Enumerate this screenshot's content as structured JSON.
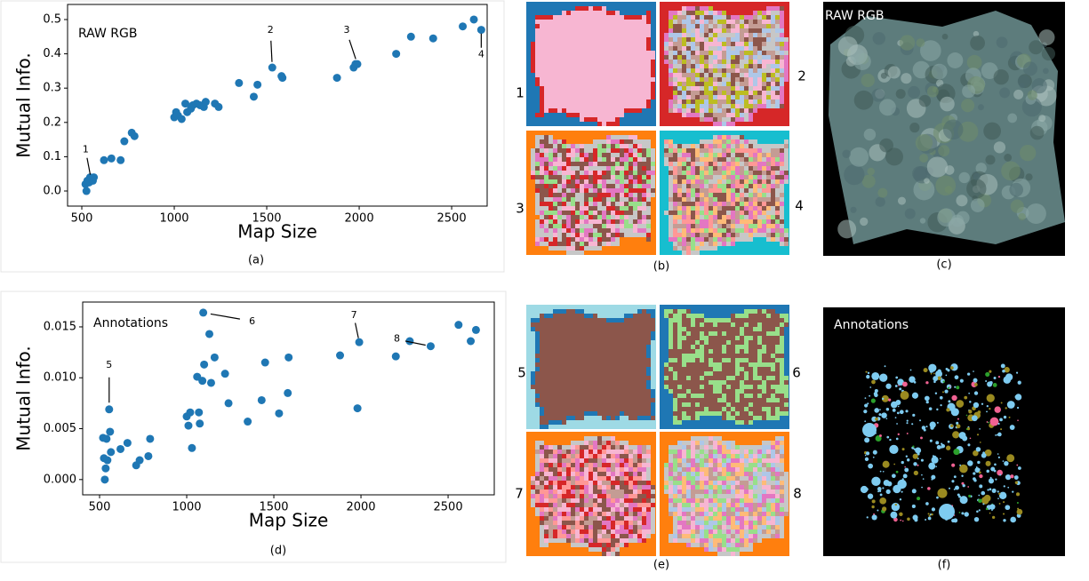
{
  "chart_data": [
    {
      "type": "scatter",
      "label": "RAW RGB",
      "xlabel": "Map Size",
      "ylabel": "Mutual Info.",
      "color": "#1f77b4",
      "x": [
        520,
        525,
        530,
        540,
        545,
        550,
        560,
        565,
        620,
        660,
        710,
        730,
        770,
        785,
        1000,
        1010,
        1020,
        1040,
        1060,
        1070,
        1090,
        1100,
        1120,
        1140,
        1160,
        1170,
        1220,
        1240,
        1350,
        1430,
        1450,
        1530,
        1580,
        1585,
        1880,
        1970,
        1980,
        1990,
        2200,
        2280,
        2400,
        2560,
        2620,
        2660
      ],
      "values": [
        0.02,
        0.0,
        0.03,
        0.025,
        0.04,
        0.035,
        0.03,
        0.04,
        0.09,
        0.095,
        0.09,
        0.145,
        0.17,
        0.16,
        0.215,
        0.23,
        0.22,
        0.21,
        0.255,
        0.23,
        0.24,
        0.25,
        0.255,
        0.25,
        0.245,
        0.26,
        0.255,
        0.245,
        0.315,
        0.275,
        0.31,
        0.36,
        0.335,
        0.33,
        0.33,
        0.36,
        0.37,
        0.37,
        0.4,
        0.45,
        0.445,
        0.48,
        0.5,
        0.47
      ],
      "xlim": [
        423,
        2692
      ],
      "ylim": [
        -0.044,
        0.544
      ],
      "xticks": [
        500,
        1000,
        1500,
        2000,
        2500
      ],
      "yticks": [
        {
          "value": 0,
          "label": "0.0"
        },
        0.1,
        0.2,
        0.3,
        0.4,
        0.5
      ],
      "annotations": [
        "1",
        "2",
        "3",
        "4"
      ],
      "caption": "(a)"
    },
    {
      "type": "scatter",
      "label": "Annotations",
      "xlabel": "Map Size",
      "ylabel": "Mutual Info.",
      "color": "#1f77b4",
      "x": [
        520,
        525,
        530,
        535,
        540,
        545,
        555,
        560,
        565,
        620,
        660,
        710,
        730,
        780,
        790,
        1000,
        1010,
        1020,
        1030,
        1060,
        1070,
        1075,
        1090,
        1100,
        1095,
        1130,
        1140,
        1160,
        1220,
        1240,
        1350,
        1430,
        1450,
        1530,
        1580,
        1585,
        1880,
        1980,
        1990,
        2200,
        2280,
        2400,
        2560,
        2630,
        2660
      ],
      "values": [
        0.0041,
        0.0021,
        0.0,
        0.0011,
        0.004,
        0.0019,
        0.0069,
        0.0047,
        0.0027,
        0.003,
        0.0036,
        0.0014,
        0.0019,
        0.0023,
        0.004,
        0.0062,
        0.0053,
        0.0066,
        0.0031,
        0.0101,
        0.0066,
        0.0055,
        0.0097,
        0.0113,
        0.0164,
        0.0143,
        0.0095,
        0.012,
        0.0104,
        0.0075,
        0.0057,
        0.0078,
        0.0115,
        0.0065,
        0.0085,
        0.012,
        0.0122,
        0.007,
        0.0135,
        0.0121,
        0.0136,
        0.0131,
        0.0152,
        0.0136,
        0.0147
      ],
      "xlim": [
        403,
        2765
      ],
      "ylim": [
        -0.0015,
        0.01744
      ],
      "xticks": [
        500,
        1000,
        1500,
        2000,
        2500
      ],
      "yticks": [
        {
          "value": 0,
          "label": "0.000"
        },
        0.005,
        {
          "value": 0.01,
          "label": "0.010"
        },
        0.015
      ],
      "annotations": [
        "5",
        "6",
        "7",
        "8"
      ],
      "caption": "(d)"
    }
  ],
  "maps_top": {
    "numbers": [
      "1",
      "2",
      "3",
      "4"
    ],
    "caption": "(b)"
  },
  "maps_bottom": {
    "numbers": [
      "5",
      "6",
      "7",
      "8"
    ],
    "caption": "(e)"
  },
  "image_top": {
    "label": "RAW RGB",
    "caption": "(c)"
  },
  "image_bottom": {
    "label": "Annotations",
    "caption": "(f)"
  }
}
